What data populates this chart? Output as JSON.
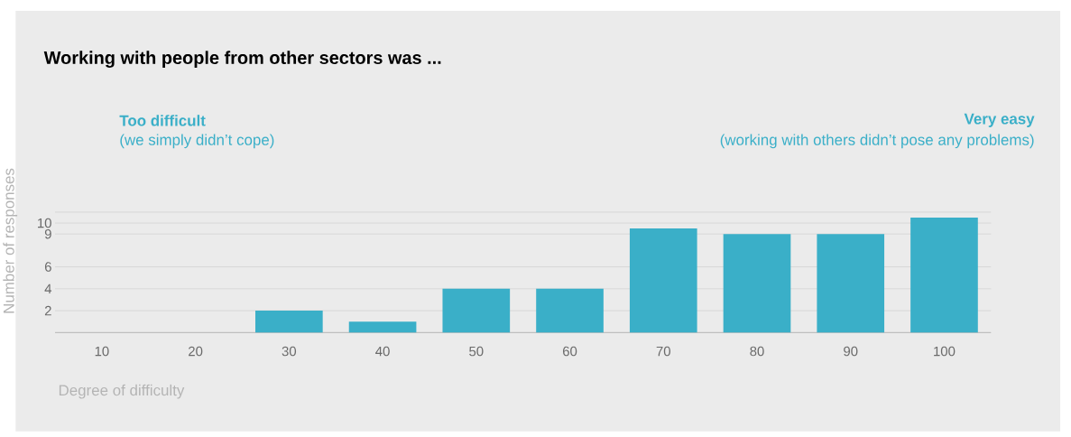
{
  "chart_data": {
    "type": "bar",
    "title": "Working with people from other sectors was ...",
    "annotations": [
      "Too difficult",
      "(we simply didn’t cope)",
      "Very easy",
      "(working with others didn’t pose any problems)"
    ],
    "xlabel": "Degree of difficulty",
    "ylabel": "Number of responses",
    "categories": [
      "10",
      "20",
      "30",
      "40",
      "50",
      "60",
      "70",
      "80",
      "90",
      "100"
    ],
    "values": [
      0,
      0,
      2,
      1,
      4,
      4,
      9.5,
      9,
      9,
      10.5
    ],
    "color": "#3aafc8",
    "ylim": [
      0,
      11
    ],
    "yticks": [
      2,
      4,
      6,
      9,
      10,
      {
        "value": 11,
        "label": null
      }
    ],
    "grid": "y"
  }
}
